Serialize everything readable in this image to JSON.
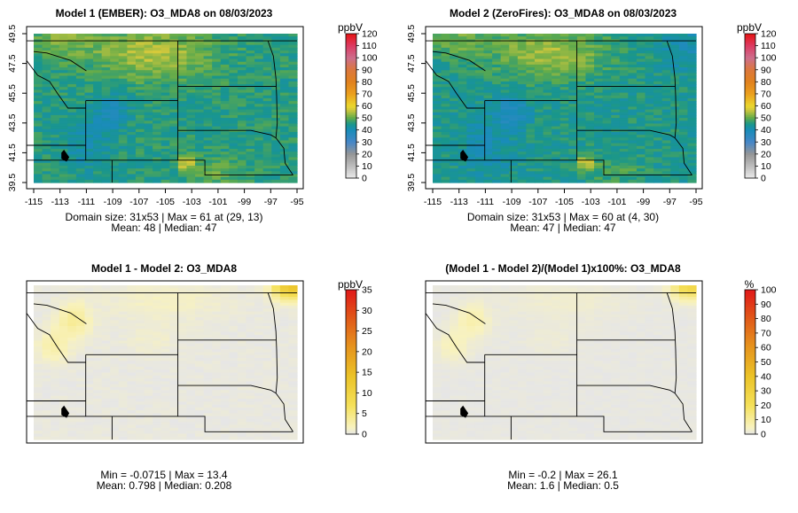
{
  "chart_data": [
    {
      "type": "heatmap",
      "title": "Model 1 (EMBER): O3_MDA8 on 08/03/2023",
      "x_ticks": [
        "-115",
        "-113",
        "-111",
        "-109",
        "-107",
        "-105",
        "-103",
        "-101",
        "-99",
        "-97",
        "-95"
      ],
      "y_ticks": [
        "39.5",
        "41.5",
        "43.5",
        "45.5",
        "47.5",
        "49.5"
      ],
      "xlim": [
        -115,
        -95
      ],
      "ylim": [
        39.5,
        49.5
      ],
      "grid": {
        "cols": 31,
        "rows": 53
      },
      "field": {
        "base": 47,
        "min": 38,
        "max": 61,
        "hotspots": [
          {
            "lon": -103.3,
            "lat": 40.8,
            "value": 61
          },
          {
            "lon": -104.5,
            "lat": 49.0,
            "value": 57
          },
          {
            "lon": -108.5,
            "lat": 47.5,
            "value": 55
          }
        ]
      },
      "colorbar": {
        "unit": "ppbV",
        "ticks": [
          "0",
          "10",
          "20",
          "30",
          "40",
          "50",
          "60",
          "70",
          "80",
          "90",
          "100",
          "110",
          "120"
        ],
        "min": 0,
        "max": 120
      },
      "stats_line1": "Domain size: 31x53 | Max = 61 at (29, 13)",
      "stats_line2": "Mean: 48 |  Median: 47"
    },
    {
      "type": "heatmap",
      "title": "Model 2 (ZeroFires): O3_MDA8 on 08/03/2023",
      "x_ticks": [
        "-115",
        "-113",
        "-111",
        "-109",
        "-107",
        "-105",
        "-103",
        "-101",
        "-99",
        "-97",
        "-95"
      ],
      "y_ticks": [
        "39.5",
        "41.5",
        "43.5",
        "45.5",
        "47.5",
        "49.5"
      ],
      "xlim": [
        -115,
        -95
      ],
      "ylim": [
        39.5,
        49.5
      ],
      "grid": {
        "cols": 31,
        "rows": 53
      },
      "field": {
        "base": 46,
        "min": 37,
        "max": 60,
        "hotspots": [
          {
            "lon": -103.3,
            "lat": 40.8,
            "value": 60
          },
          {
            "lon": -104.5,
            "lat": 49.0,
            "value": 55
          }
        ]
      },
      "colorbar": {
        "unit": "ppbV",
        "ticks": [
          "0",
          "10",
          "20",
          "30",
          "40",
          "50",
          "60",
          "70",
          "80",
          "90",
          "100",
          "110",
          "120"
        ],
        "min": 0,
        "max": 120
      },
      "stats_line1": "Domain size: 31x53 | Max = 60 at (4, 30)",
      "stats_line2": "Mean: 47 |  Median: 47"
    },
    {
      "type": "heatmap",
      "title": "Model 1 - Model 2: O3_MDA8",
      "xlim": [
        -115,
        -95
      ],
      "ylim": [
        39.5,
        49.5
      ],
      "grid": {
        "cols": 31,
        "rows": 53
      },
      "field": {
        "min": -0.0715,
        "max": 13.4,
        "hotspots": [
          {
            "lon": -95.5,
            "lat": 49.3,
            "value": 13.4
          },
          {
            "lon": -112,
            "lat": 47.0,
            "value": 4
          },
          {
            "lon": -113.5,
            "lat": 45.5,
            "value": 3
          }
        ]
      },
      "colorbar": {
        "unit": "ppbV",
        "ticks": [
          "0",
          "5",
          "10",
          "15",
          "20",
          "25",
          "30",
          "35"
        ],
        "min": 0,
        "max": 35
      },
      "stats_line1": "Min = -0.0715 | Max = 13.4",
      "stats_line2": "Mean: 0.798 |  Median: 0.208"
    },
    {
      "type": "heatmap",
      "title": "(Model 1 - Model 2)/(Model 1)x100%: O3_MDA8",
      "xlim": [
        -115,
        -95
      ],
      "ylim": [
        39.5,
        49.5
      ],
      "grid": {
        "cols": 31,
        "rows": 53
      },
      "field": {
        "min": -0.2,
        "max": 26.1,
        "hotspots": [
          {
            "lon": -95.5,
            "lat": 49.3,
            "value": 26.1
          },
          {
            "lon": -112,
            "lat": 47.0,
            "value": 8
          },
          {
            "lon": -113.5,
            "lat": 45.5,
            "value": 6
          }
        ]
      },
      "colorbar": {
        "unit": "%",
        "ticks": [
          "0",
          "10",
          "20",
          "30",
          "40",
          "50",
          "60",
          "70",
          "80",
          "90",
          "100"
        ],
        "min": 0,
        "max": 100
      },
      "stats_line1": "Min = -0.2 | Max = 26.1",
      "stats_line2": "Mean: 1.6 |  Median: 0.5"
    }
  ]
}
